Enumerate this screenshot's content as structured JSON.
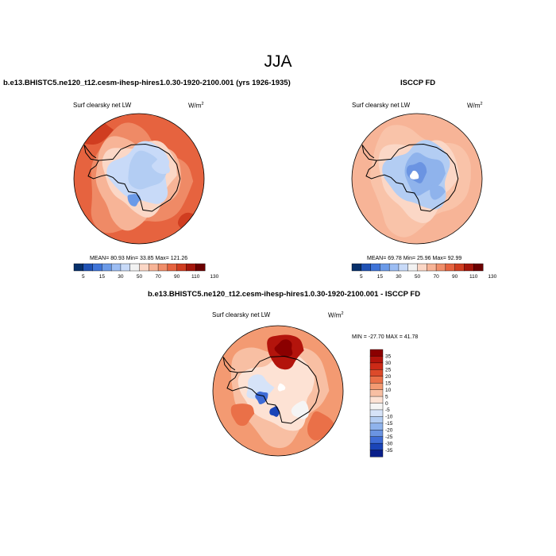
{
  "figure": {
    "title": "JJA"
  },
  "chart_data": [
    {
      "type": "heatmap",
      "title": "b.e13.BHISTC5.ne120_t12.cesm-ihesp-hires1.0.30-1920-2100.001 (yrs 1926-1935)",
      "panel_label": "Surf clearsky net LW",
      "units": "W/m",
      "units_exp": "2",
      "projection": "south-polar-stereographic",
      "stats": {
        "mean": "80.93",
        "min": "33.85",
        "max": "121.26",
        "text": "MEAN=  80.93  Min=  33.85  Max=  121.26"
      },
      "colorbar": {
        "levels": [
          5,
          15,
          30,
          50,
          70,
          90,
          110,
          130
        ],
        "tick_labels": [
          "5",
          "15",
          "30",
          "50",
          "70",
          "90",
          "110",
          "130"
        ],
        "colors": [
          "#08306b",
          "#2052b5",
          "#3f74d8",
          "#6b9ae8",
          "#9cbdf3",
          "#c8daf8",
          "#f2f2f2",
          "#fbd7c6",
          "#f7b497",
          "#f08e6a",
          "#e6633f",
          "#d03d20",
          "#a4160b",
          "#6b0000"
        ],
        "orientation": "horizontal"
      }
    },
    {
      "type": "heatmap",
      "title": "ISCCP FD",
      "panel_label": "Surf clearsky net LW",
      "units": "W/m",
      "units_exp": "2",
      "projection": "south-polar-stereographic",
      "stats": {
        "mean": "69.78",
        "min": "25.96",
        "max": "92.99",
        "text": "MEAN=  69.78  Min=  25.96  Max=  92.99"
      },
      "colorbar": {
        "levels": [
          5,
          15,
          30,
          50,
          70,
          90,
          110,
          130
        ],
        "tick_labels": [
          "5",
          "15",
          "30",
          "50",
          "70",
          "90",
          "110",
          "130"
        ],
        "colors": [
          "#08306b",
          "#2052b5",
          "#3f74d8",
          "#6b9ae8",
          "#9cbdf3",
          "#c8daf8",
          "#f2f2f2",
          "#fbd7c6",
          "#f7b497",
          "#f08e6a",
          "#e6633f",
          "#d03d20",
          "#a4160b",
          "#6b0000"
        ],
        "orientation": "horizontal"
      }
    },
    {
      "type": "heatmap",
      "title": "b.e13.BHISTC5.ne120_t12.cesm-ihesp-hires1.0.30-1920-2100.001 - ISCCP FD",
      "panel_label": "Surf clearsky net LW",
      "units": "W/m",
      "units_exp": "2",
      "projection": "south-polar-stereographic",
      "stats": {
        "min": "-27.70",
        "max": "41.78",
        "text": "MIN = -27.70  MAX =  41.78"
      },
      "colorbar": {
        "levels": [
          -35,
          -30,
          -25,
          -20,
          -15,
          -10,
          -5,
          0,
          5,
          10,
          15,
          20,
          25,
          30,
          35
        ],
        "tick_labels": [
          "35",
          "30",
          "25",
          "20",
          "15",
          "10",
          "5",
          "0",
          "-5",
          "-10",
          "-15",
          "-20",
          "-25",
          "-30",
          "-35"
        ],
        "colors": [
          "#8b0000",
          "#b3140c",
          "#cc2a17",
          "#dc4a2a",
          "#ea7048",
          "#f39a72",
          "#f8bfa3",
          "#fde2d4",
          "#f5f5f5",
          "#d6e3f8",
          "#b3cdf3",
          "#8fb3ec",
          "#6b94e2",
          "#3f6cd6",
          "#1b45b8",
          "#0a1f8a"
        ],
        "orientation": "vertical"
      }
    }
  ]
}
